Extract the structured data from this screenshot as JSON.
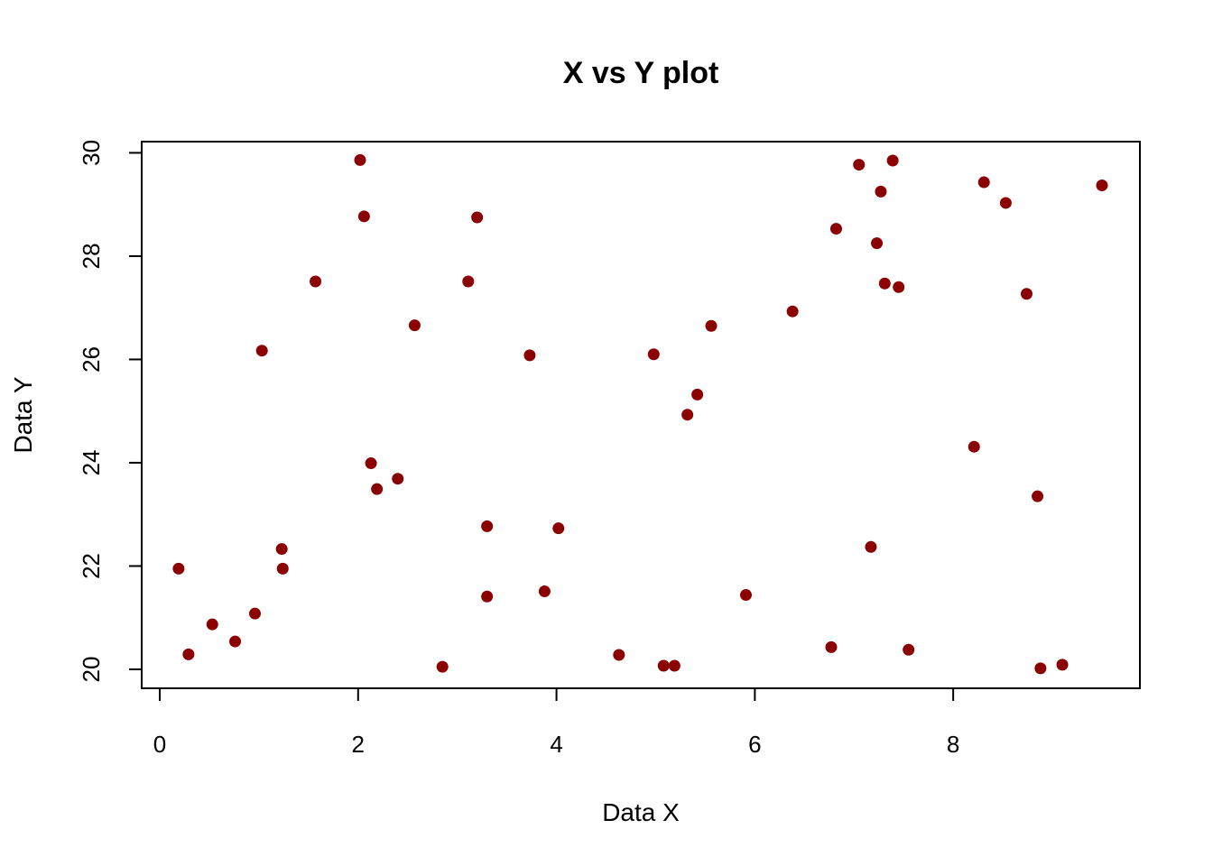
{
  "chart_data": {
    "type": "scatter",
    "title": "X vs Y plot",
    "xlabel": "Data X",
    "ylabel": "Data Y",
    "xlim": [
      0,
      9.5
    ],
    "ylim": [
      20,
      29.85
    ],
    "x_ticks": [
      "0",
      "2",
      "4",
      "6",
      "8"
    ],
    "y_ticks": [
      "20",
      "22",
      "24",
      "26",
      "28",
      "30"
    ],
    "grid": false,
    "marker_color": "#8B0000",
    "series": [
      {
        "points": [
          [
            0.19,
            21.95
          ],
          [
            0.29,
            20.29
          ],
          [
            0.53,
            20.87
          ],
          [
            0.76,
            20.54
          ],
          [
            0.96,
            21.08
          ],
          [
            1.03,
            26.17
          ],
          [
            1.23,
            22.33
          ],
          [
            1.24,
            21.95
          ],
          [
            1.57,
            27.51
          ],
          [
            2.02,
            29.86
          ],
          [
            2.06,
            28.77
          ],
          [
            2.13,
            23.99
          ],
          [
            2.19,
            23.49
          ],
          [
            2.4,
            23.69
          ],
          [
            2.57,
            26.66
          ],
          [
            2.85,
            20.05
          ],
          [
            3.11,
            27.51
          ],
          [
            3.2,
            28.75
          ],
          [
            3.3,
            22.77
          ],
          [
            3.3,
            21.41
          ],
          [
            3.73,
            26.08
          ],
          [
            3.88,
            21.51
          ],
          [
            4.02,
            22.73
          ],
          [
            4.63,
            20.28
          ],
          [
            4.98,
            26.1
          ],
          [
            5.08,
            20.07
          ],
          [
            5.19,
            20.07
          ],
          [
            5.32,
            24.93
          ],
          [
            5.42,
            25.32
          ],
          [
            5.56,
            26.65
          ],
          [
            5.91,
            21.44
          ],
          [
            6.38,
            26.93
          ],
          [
            6.77,
            20.43
          ],
          [
            6.82,
            28.53
          ],
          [
            7.05,
            29.77
          ],
          [
            7.17,
            22.37
          ],
          [
            7.23,
            28.25
          ],
          [
            7.27,
            29.25
          ],
          [
            7.31,
            27.47
          ],
          [
            7.39,
            29.85
          ],
          [
            7.45,
            27.4
          ],
          [
            7.55,
            20.38
          ],
          [
            8.21,
            24.31
          ],
          [
            8.31,
            29.43
          ],
          [
            8.53,
            29.03
          ],
          [
            8.74,
            27.27
          ],
          [
            8.85,
            23.35
          ],
          [
            8.88,
            20.02
          ],
          [
            9.1,
            20.09
          ],
          [
            9.5,
            29.37
          ]
        ]
      }
    ]
  }
}
